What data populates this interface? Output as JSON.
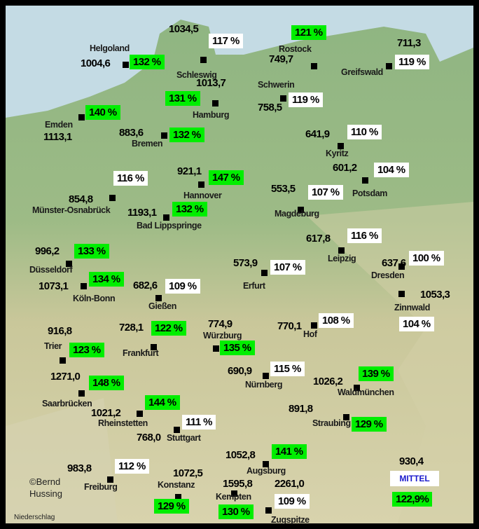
{
  "map": {
    "variable_label": "Niederschlag",
    "credit_line1": "©Bernd",
    "credit_line2": "Hussing",
    "colors": {
      "above_120_pct": "#00ee00",
      "below_120_pct": "#ffffff",
      "mittel_text": "#1a1acc"
    },
    "mittel": {
      "label": "MITTEL",
      "value": "930,4",
      "percent": "122,9%"
    }
  },
  "stations": [
    {
      "name": "Schleswig",
      "value": "1034,5",
      "percent": "117 %",
      "highlight": false
    },
    {
      "name": "Helgoland",
      "value": "1004,6",
      "percent": "132 %",
      "highlight": true
    },
    {
      "name": "Rostock",
      "value": "749,7",
      "percent": "121 %",
      "highlight": true
    },
    {
      "name": "Greifswald",
      "value": "711,3",
      "percent": "119 %",
      "highlight": false
    },
    {
      "name": "Hamburg",
      "value": "1013,7",
      "percent": "131 %",
      "highlight": true
    },
    {
      "name": "Schwerin",
      "value": "758,5",
      "percent": "119 %",
      "highlight": false
    },
    {
      "name": "Emden",
      "value": "1113,1",
      "percent": "140 %",
      "highlight": true
    },
    {
      "name": "Bremen",
      "value": "883,6",
      "percent": "132 %",
      "highlight": true
    },
    {
      "name": "Kyritz",
      "value": "641,9",
      "percent": "110 %",
      "highlight": false
    },
    {
      "name": "Potsdam",
      "value": "601,2",
      "percent": "104 %",
      "highlight": false
    },
    {
      "name": "Hannover",
      "value": "921,1",
      "percent": "147 %",
      "highlight": true
    },
    {
      "name": "Münster-Osnabrück",
      "value": "854,8",
      "percent": "116 %",
      "highlight": false
    },
    {
      "name": "Magdeburg",
      "value": "553,5",
      "percent": "107 %",
      "highlight": false
    },
    {
      "name": "Bad Lippspringe",
      "value": "1193,1",
      "percent": "132 %",
      "highlight": true
    },
    {
      "name": "Leipzig",
      "value": "617,8",
      "percent": "116 %",
      "highlight": false
    },
    {
      "name": "Düsseldorf",
      "value": "996,2",
      "percent": "133 %",
      "highlight": true
    },
    {
      "name": "Dresden",
      "value": "637,6",
      "percent": "100 %",
      "highlight": false
    },
    {
      "name": "Erfurt",
      "value": "573,9",
      "percent": "107 %",
      "highlight": false
    },
    {
      "name": "Köln-Bonn",
      "value": "1073,1",
      "percent": "134 %",
      "highlight": true
    },
    {
      "name": "Gießen",
      "value": "682,6",
      "percent": "109 %",
      "highlight": false
    },
    {
      "name": "Zinnwald",
      "value": "1053,3",
      "percent": "104 %",
      "highlight": false
    },
    {
      "name": "Hof",
      "value": "770,1",
      "percent": "108 %",
      "highlight": false
    },
    {
      "name": "Frankfurt",
      "value": "728,1",
      "percent": "122 %",
      "highlight": true
    },
    {
      "name": "Würzburg",
      "value": "774,9",
      "percent": "135 %",
      "highlight": true
    },
    {
      "name": "Trier",
      "value": "916,8",
      "percent": "123 %",
      "highlight": true
    },
    {
      "name": "Nürnberg",
      "value": "690,9",
      "percent": "115 %",
      "highlight": false
    },
    {
      "name": "Waldmünchen",
      "value": "1026,2",
      "percent": "139 %",
      "highlight": true
    },
    {
      "name": "Saarbrücken",
      "value": "1271,0",
      "percent": "148 %",
      "highlight": true
    },
    {
      "name": "Rheinstetten",
      "value": "1021,2",
      "percent": "144 %",
      "highlight": true
    },
    {
      "name": "Straubing",
      "value": "891,8",
      "percent": "129 %",
      "highlight": true
    },
    {
      "name": "Stuttgart",
      "value": "768,0",
      "percent": "111 %",
      "highlight": false
    },
    {
      "name": "Augsburg",
      "value": "1052,8",
      "percent": "141 %",
      "highlight": true
    },
    {
      "name": "Freiburg",
      "value": "983,8",
      "percent": "112 %",
      "highlight": false
    },
    {
      "name": "Konstanz",
      "value": "1072,5",
      "percent": "129 %",
      "highlight": true
    },
    {
      "name": "Kempten",
      "value": "1595,8",
      "percent": "130 %",
      "highlight": true
    },
    {
      "name": "Zugspitze",
      "value": "2261,0",
      "percent": "109 %",
      "highlight": false
    }
  ]
}
